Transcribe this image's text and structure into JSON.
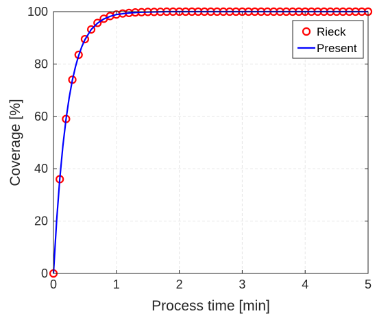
{
  "chart_data": {
    "type": "line",
    "title": "",
    "xlabel": "Process time [min]",
    "ylabel": "Coverage [%]",
    "xlim": [
      0,
      5
    ],
    "ylim": [
      0,
      100
    ],
    "xticks": [
      "0",
      "1",
      "2",
      "3",
      "4",
      "5"
    ],
    "yticks": [
      "0",
      "20",
      "40",
      "60",
      "80",
      "100"
    ],
    "grid": true,
    "legend": "top-right",
    "series": [
      {
        "name": "Rieck",
        "style": "markers",
        "color": "#ff0000",
        "marker": "circle-open",
        "x": [
          0,
          0.1,
          0.2,
          0.3,
          0.4,
          0.5,
          0.6,
          0.7,
          0.8,
          0.9,
          1.0,
          1.1,
          1.2,
          1.3,
          1.4,
          1.5,
          1.6,
          1.7,
          1.8,
          1.9,
          2.0,
          2.1,
          2.2,
          2.3,
          2.4,
          2.5,
          2.6,
          2.7,
          2.8,
          2.9,
          3.0,
          3.1,
          3.2,
          3.3,
          3.4,
          3.5,
          3.6,
          3.7,
          3.8,
          3.9,
          4.0,
          4.1,
          4.2,
          4.3,
          4.4,
          4.5,
          4.6,
          4.7,
          4.8,
          4.9,
          5.0
        ],
        "y": [
          0,
          36,
          59,
          74,
          83.5,
          89.5,
          93.2,
          95.7,
          97.3,
          98.3,
          98.9,
          99.3,
          99.5,
          99.7,
          99.8,
          99.9,
          99.9,
          99.95,
          100,
          100,
          100,
          100,
          100,
          100,
          100,
          100,
          100,
          100,
          100,
          100,
          100,
          100,
          100,
          100,
          100,
          100,
          100,
          100,
          100,
          100,
          100,
          100,
          100,
          100,
          100,
          100,
          100,
          100,
          100,
          100,
          100
        ]
      },
      {
        "name": "Present",
        "style": "line",
        "color": "#0000ff",
        "x": [
          0,
          0.05,
          0.1,
          0.15,
          0.2,
          0.25,
          0.3,
          0.35,
          0.4,
          0.45,
          0.5,
          0.6,
          0.7,
          0.8,
          0.9,
          1.0,
          1.2,
          1.4,
          1.6,
          1.8,
          2.0,
          2.5,
          3.0,
          3.5,
          4.0,
          4.5,
          5.0
        ],
        "y": [
          0,
          20,
          36,
          48.8,
          59,
          67.2,
          73.8,
          79,
          83.2,
          86.6,
          89.3,
          93.2,
          95.6,
          97.2,
          98.2,
          98.9,
          99.5,
          99.8,
          99.9,
          100,
          100,
          100,
          100,
          100,
          100,
          100,
          100
        ]
      }
    ]
  }
}
